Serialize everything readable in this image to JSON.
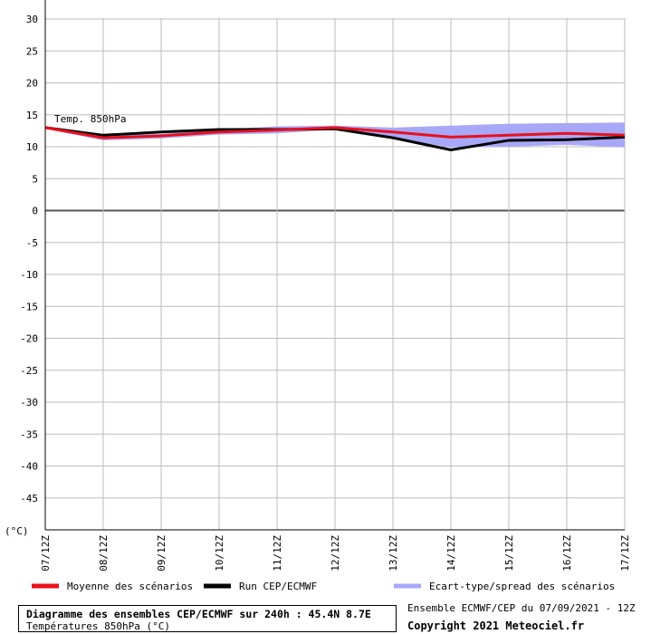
{
  "chart_data": {
    "type": "line",
    "xlabel": "",
    "ylabel": "(°C)",
    "series_label": "Temp. 850hPa",
    "ylim": [
      -50,
      30
    ],
    "yticks": [
      30,
      25,
      20,
      15,
      10,
      5,
      0,
      -5,
      -10,
      -15,
      -20,
      -25,
      -30,
      -35,
      -40,
      -45
    ],
    "categories": [
      "07/12Z",
      "08/12Z",
      "09/12Z",
      "10/12Z",
      "11/12Z",
      "12/12Z",
      "13/12Z",
      "14/12Z",
      "15/12Z",
      "16/12Z",
      "17/12Z"
    ],
    "series": [
      {
        "name": "Moyenne des scénarios",
        "color": "#e8101c",
        "values": [
          13.0,
          11.4,
          11.7,
          12.3,
          12.6,
          13.0,
          12.3,
          11.5,
          11.8,
          12.1,
          11.8
        ]
      },
      {
        "name": "Run CEP/ECMWF",
        "color": "#000000",
        "values": [
          13.0,
          11.8,
          12.3,
          12.7,
          12.7,
          12.8,
          11.4,
          9.5,
          11.0,
          11.1,
          11.5
        ]
      }
    ],
    "spread": {
      "name": "Ecart-type/spread des scénarios",
      "color": "#a8a8f8",
      "upper": [
        13.2,
        11.8,
        12.0,
        12.7,
        13.2,
        13.3,
        13.0,
        13.3,
        13.6,
        13.7,
        13.8
      ],
      "lower": [
        12.8,
        11.0,
        11.3,
        11.9,
        12.1,
        12.7,
        11.3,
        9.9,
        10.0,
        10.3,
        9.9
      ]
    },
    "grid": true
  },
  "legend": {
    "items": [
      {
        "label": "Moyenne des scénarios",
        "color": "#e8101c"
      },
      {
        "label": "Run CEP/ECMWF",
        "color": "#000000"
      },
      {
        "label": "Ecart-type/spread des scénarios",
        "color": "#a8a8f8"
      }
    ]
  },
  "footer": {
    "title": "Diagramme des ensembles CEP/ECMWF sur 240h : 45.4N 8.7E",
    "subtitle": "Températures 850hPa (°C)",
    "ensemble_info": "Ensemble ECMWF/CEP du 07/09/2021 - 12Z",
    "copyright": "Copyright 2021 Meteociel.fr"
  }
}
